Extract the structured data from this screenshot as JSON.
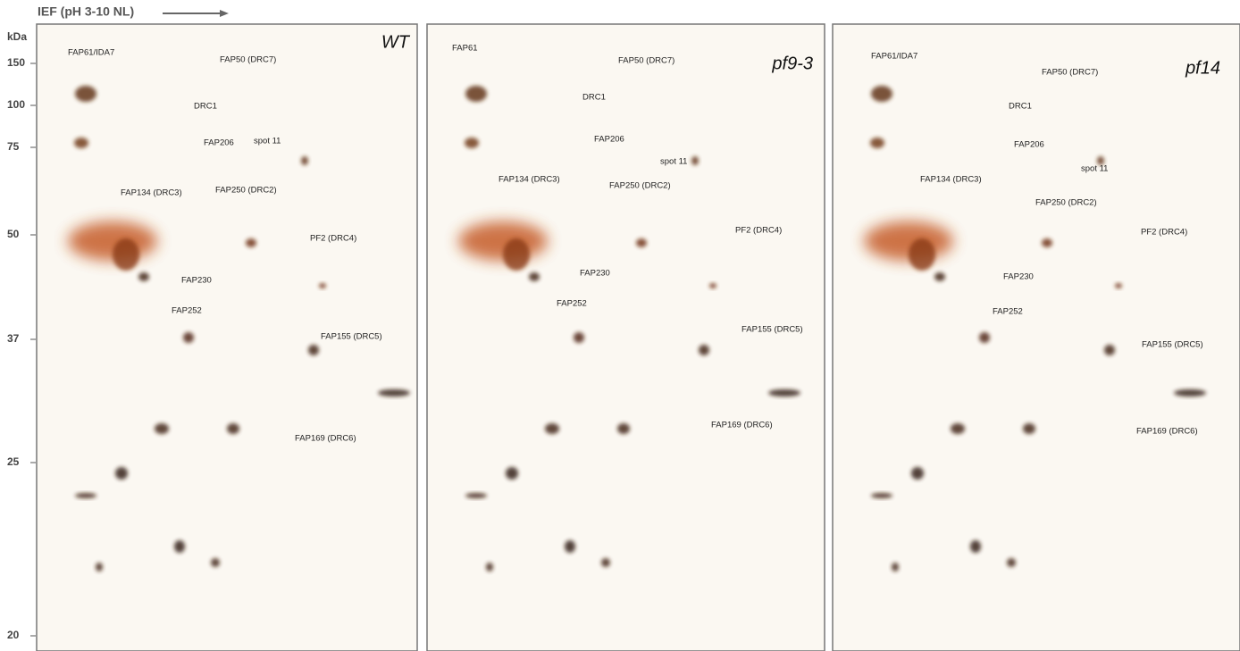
{
  "header": {
    "title": "IEF (pH 3-10 NL)"
  },
  "y_axis": {
    "unit": "kDa",
    "labels": [
      "150",
      "100",
      "75",
      "50",
      "37",
      "25",
      "20"
    ]
  },
  "panels": [
    {
      "title": "WT",
      "annotations": [
        "FAP61/IDA7",
        "FAP50 (DRC7)",
        "DRC1",
        "FAP206",
        "spot 11",
        "FAP134 (DRC3)",
        "FAP250 (DRC2)",
        "PF2 (DRC4)",
        "FAP230",
        "FAP252",
        "FAP155 (DRC5)",
        "FAP169 (DRC6)"
      ]
    },
    {
      "title": "pf9-3",
      "annotations": [
        "FAP61",
        "FAP50 (DRC7)",
        "DRC1",
        "FAP206",
        "spot 11",
        "FAP134 (DRC3)",
        "FAP250 (DRC2)",
        "PF2 (DRC4)",
        "FAP230",
        "FAP252",
        "FAP155 (DRC5)",
        "FAP169 (DRC6)"
      ]
    },
    {
      "title": "pf14",
      "annotations": [
        "FAP61/IDA7",
        "FAP50 (DRC7)",
        "DRC1",
        "FAP206",
        "spot 11",
        "FAP134 (DRC3)",
        "FAP250 (DRC2)",
        "PF2 (DRC4)",
        "FAP230",
        "FAP252",
        "FAP155 (DRC5)",
        "FAP169 (DRC6)"
      ]
    }
  ]
}
